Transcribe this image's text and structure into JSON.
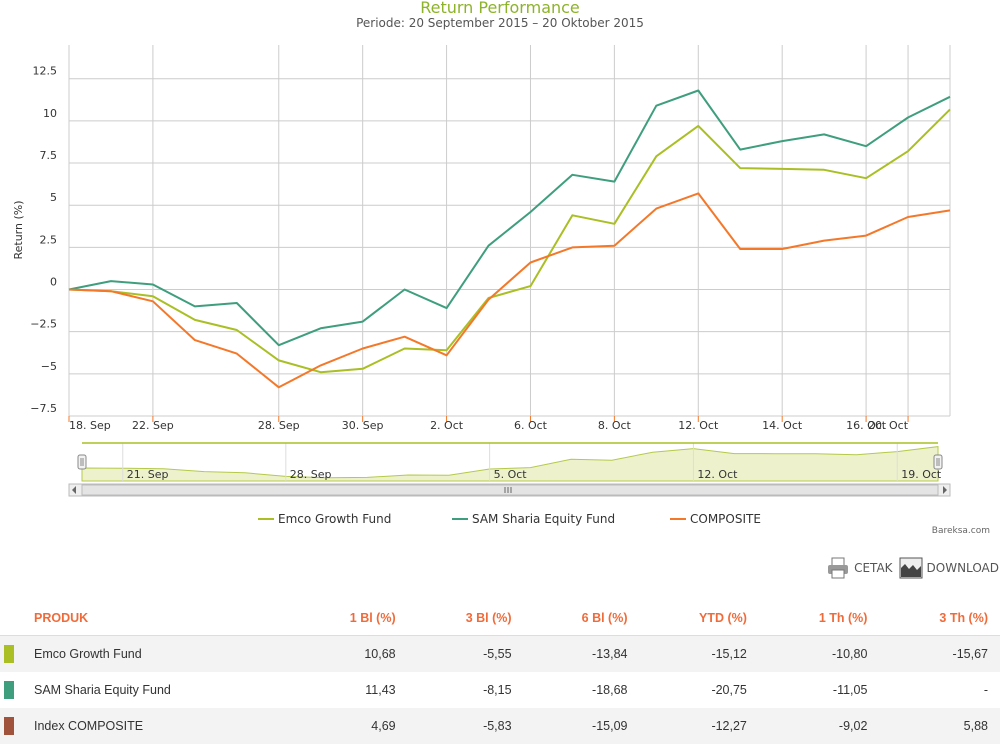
{
  "chart_data": {
    "type": "line",
    "title": "Return Performance",
    "subtitle": "Periode: 20 September 2015 – 20 Oktober 2015",
    "ylabel": "Return (%)",
    "ylim": [
      -7.5,
      14.5
    ],
    "yticks": [
      12.5,
      10,
      7.5,
      5,
      2.5,
      0,
      -2.5,
      -5,
      -7.5
    ],
    "ytick_labels": [
      "12.5",
      "10",
      "7.5",
      "5",
      "2.5",
      "0",
      "−2.5",
      "−5",
      "−7.5"
    ],
    "xticks": [
      0,
      2,
      5,
      7,
      9,
      11,
      13,
      15,
      17,
      19,
      20
    ],
    "xtick_labels": [
      "18. Sep",
      "22. Sep",
      "28. Sep",
      "30. Sep",
      "2. Oct",
      "6. Oct",
      "8. Oct",
      "12. Oct",
      "14. Oct",
      "16. Oct",
      "20. Oct"
    ],
    "x_dates": [
      "18. Sep",
      "21. Sep",
      "22. Sep",
      "23. Sep",
      "25. Sep",
      "28. Sep",
      "29. Sep",
      "30. Sep",
      "1. Oct",
      "2. Oct",
      "5. Oct",
      "6. Oct",
      "7. Oct",
      "8. Oct",
      "9. Oct",
      "12. Oct",
      "13. Oct",
      "14. Oct",
      "15. Oct",
      "16. Oct",
      "19. Oct",
      "20. Oct"
    ],
    "series": [
      {
        "name": "Emco Growth Fund",
        "color": "#a9bf24",
        "values": [
          0,
          -0.1,
          -0.4,
          -1.8,
          -2.4,
          -4.2,
          -4.9,
          -4.7,
          -3.5,
          -3.6,
          -0.5,
          0.2,
          4.4,
          3.9,
          7.9,
          9.7,
          7.2,
          7.15,
          7.1,
          6.6,
          8.2,
          10.68
        ]
      },
      {
        "name": "SAM Sharia Equity Fund",
        "color": "#3e9e7e",
        "values": [
          0,
          0.5,
          0.3,
          -1.0,
          -0.8,
          -3.3,
          -2.3,
          -1.9,
          0.0,
          -1.1,
          2.6,
          4.6,
          6.8,
          6.4,
          10.9,
          11.8,
          8.3,
          8.8,
          9.2,
          8.5,
          10.2,
          11.43
        ]
      },
      {
        "name": "COMPOSITE",
        "color": "#f4782a",
        "values": [
          0,
          -0.1,
          -0.7,
          -3.0,
          -3.8,
          -5.8,
          -4.5,
          -3.5,
          -2.8,
          -3.9,
          -0.6,
          1.6,
          2.5,
          2.6,
          4.8,
          5.7,
          2.4,
          2.4,
          2.9,
          3.2,
          4.3,
          4.69
        ]
      }
    ],
    "navigator_labels": [
      "21. Sep",
      "28. Sep",
      "5. Oct",
      "12. Oct",
      "19. Oct"
    ],
    "legend_position": "bottom",
    "grid": true,
    "credit": "Bareksa.com"
  },
  "toolbar": {
    "print_label": "CETAK",
    "download_label": "DOWNLOAD"
  },
  "table": {
    "headers": [
      "PRODUK",
      "1 Bl (%)",
      "3 Bl (%)",
      "6 Bl (%)",
      "YTD (%)",
      "1 Th (%)",
      "3 Th (%)"
    ],
    "rows": [
      {
        "color": "#a9bf24",
        "name": "Emco Growth Fund",
        "values": [
          "10,68",
          "-5,55",
          "-13,84",
          "-15,12",
          "-10,80",
          "-15,67"
        ]
      },
      {
        "color": "#3e9e7e",
        "name": "SAM Sharia Equity Fund",
        "values": [
          "11,43",
          "-8,15",
          "-18,68",
          "-20,75",
          "-11,05",
          "-"
        ]
      },
      {
        "color": "#a0523a",
        "name": "Index COMPOSITE",
        "values": [
          "4,69",
          "-5,83",
          "-15,09",
          "-12,27",
          "-9,02",
          "5,88"
        ]
      }
    ]
  }
}
